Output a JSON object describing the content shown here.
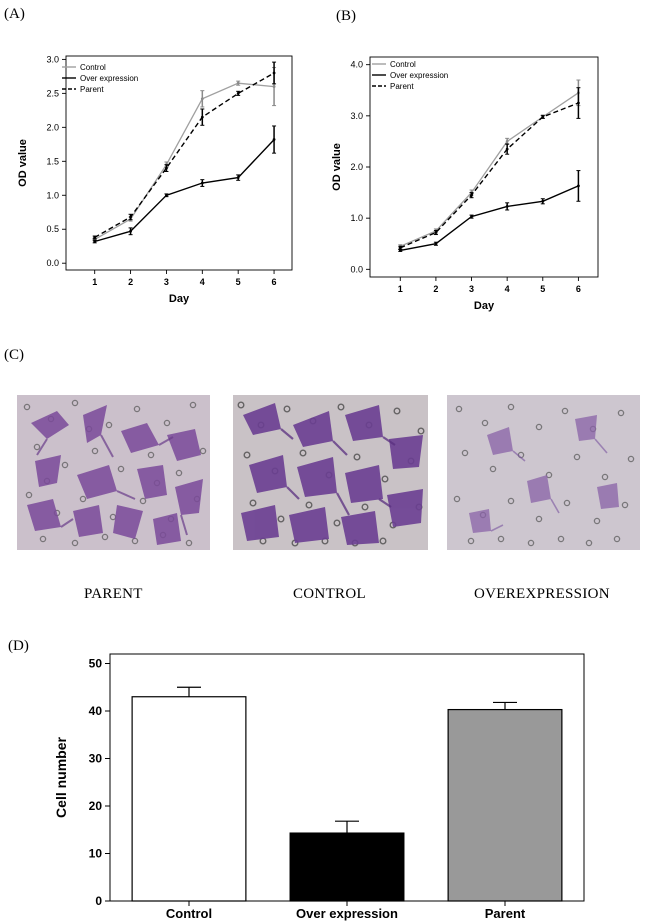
{
  "panels": {
    "a": {
      "label": "(A)"
    },
    "b": {
      "label": "(B)"
    },
    "c": {
      "label": "(C)",
      "captions": [
        "PARENT",
        "CONTROL",
        "OVEREXPRESSION"
      ]
    },
    "d": {
      "label": "(D)"
    }
  },
  "chart_data": [
    {
      "id": "A",
      "type": "line",
      "xlabel": "Day",
      "ylabel": "OD value",
      "x": [
        1,
        2,
        3,
        4,
        5,
        6
      ],
      "xlim": [
        0.2,
        6.5
      ],
      "ylim": [
        -0.1,
        3.05
      ],
      "yticks": [
        0.0,
        0.5,
        1.0,
        1.5,
        2.0,
        2.5,
        3.0
      ],
      "ytick_labels": [
        "0.0",
        "0.5",
        "1.0",
        "1.5",
        "2.0",
        "2.5",
        "3.0"
      ],
      "legend_position": "top-left",
      "grid": false,
      "series": [
        {
          "name": "Control",
          "style": "solid",
          "color": "#a0a0a0",
          "values": [
            0.35,
            0.65,
            1.45,
            2.42,
            2.65,
            2.6
          ],
          "errors": [
            0.02,
            0.03,
            0.04,
            0.12,
            0.03,
            0.28
          ]
        },
        {
          "name": "Over expression",
          "style": "solid",
          "color": "#000000",
          "values": [
            0.32,
            0.47,
            1.0,
            1.18,
            1.26,
            1.82
          ],
          "errors": [
            0.02,
            0.05,
            0.02,
            0.05,
            0.04,
            0.2
          ]
        },
        {
          "name": "Parent",
          "style": "dashed",
          "color": "#000000",
          "values": [
            0.38,
            0.68,
            1.4,
            2.15,
            2.5,
            2.8
          ],
          "errors": [
            0.02,
            0.04,
            0.05,
            0.12,
            0.03,
            0.16
          ]
        }
      ]
    },
    {
      "id": "B",
      "type": "line",
      "xlabel": "Day",
      "ylabel": "OD value",
      "x": [
        1,
        2,
        3,
        4,
        5,
        6
      ],
      "xlim": [
        0.15,
        6.55
      ],
      "ylim": [
        -0.15,
        4.15
      ],
      "yticks": [
        0.0,
        1.0,
        2.0,
        3.0,
        4.0
      ],
      "ytick_labels": [
        "0.0",
        "1.0",
        "2.0",
        "3.0",
        "4.0"
      ],
      "legend_position": "top-left",
      "grid": false,
      "series": [
        {
          "name": "Control",
          "style": "solid",
          "color": "#a0a0a0",
          "values": [
            0.45,
            0.75,
            1.5,
            2.5,
            2.98,
            3.45
          ],
          "errors": [
            0.03,
            0.04,
            0.05,
            0.06,
            0.03,
            0.25
          ]
        },
        {
          "name": "Over expression",
          "style": "solid",
          "color": "#000000",
          "values": [
            0.37,
            0.5,
            1.03,
            1.23,
            1.33,
            1.63
          ],
          "errors": [
            0.02,
            0.03,
            0.03,
            0.07,
            0.05,
            0.3
          ]
        },
        {
          "name": "Parent",
          "style": "dashed",
          "color": "#000000",
          "values": [
            0.42,
            0.72,
            1.45,
            2.35,
            2.98,
            3.25
          ],
          "errors": [
            0.03,
            0.04,
            0.05,
            0.1,
            0.03,
            0.3
          ]
        }
      ]
    },
    {
      "id": "D",
      "type": "bar",
      "ylabel": "Cell number",
      "categories": [
        "Control",
        "Over expression",
        "Parent"
      ],
      "values": [
        43,
        14.3,
        40.3
      ],
      "errors": [
        2,
        2.5,
        1.5
      ],
      "bar_colors": [
        "#ffffff",
        "#000000",
        "#999999"
      ],
      "ylim": [
        0,
        52
      ],
      "yticks": [
        0,
        10,
        20,
        30,
        40,
        50
      ],
      "ytick_labels": [
        "0",
        "10",
        "20",
        "30",
        "40",
        "50"
      ],
      "grid": false
    }
  ]
}
